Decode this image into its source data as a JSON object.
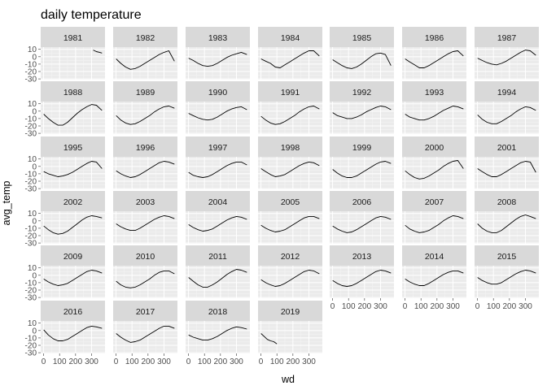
{
  "chart_data": {
    "type": "line",
    "title": "daily temperature",
    "xlabel": "wd",
    "ylabel": "avg_temp",
    "facet_panels": [
      {
        "year": "1981",
        "x": [
          310,
          330,
          350,
          365
        ],
        "y": [
          9,
          7,
          6,
          5
        ]
      },
      {
        "year": "1982",
        "x": [
          1,
          30,
          60,
          90,
          120,
          150,
          180,
          210,
          240,
          270,
          300,
          330,
          365
        ],
        "y": [
          -3,
          -9,
          -14,
          -17,
          -16,
          -13,
          -9,
          -5,
          -1,
          3,
          6,
          8,
          -6
        ]
      },
      {
        "year": "1983",
        "x": [
          1,
          30,
          60,
          90,
          120,
          150,
          180,
          210,
          240,
          270,
          300,
          330,
          365
        ],
        "y": [
          -2,
          -5,
          -9,
          -12,
          -13,
          -12,
          -9,
          -5,
          -1,
          2,
          4,
          6,
          3
        ]
      },
      {
        "year": "1984",
        "x": [
          1,
          30,
          60,
          90,
          120,
          150,
          180,
          210,
          240,
          270,
          300,
          330,
          365
        ],
        "y": [
          -3,
          -6,
          -9,
          -14,
          -15,
          -11,
          -7,
          -3,
          1,
          5,
          8,
          8,
          1
        ]
      },
      {
        "year": "1985",
        "x": [
          1,
          30,
          60,
          90,
          120,
          150,
          180,
          210,
          240,
          270,
          300,
          330,
          365
        ],
        "y": [
          -4,
          -8,
          -12,
          -15,
          -16,
          -14,
          -10,
          -5,
          0,
          4,
          5,
          3,
          -12
        ]
      },
      {
        "year": "1986",
        "x": [
          1,
          30,
          60,
          90,
          120,
          150,
          180,
          210,
          240,
          270,
          300,
          330,
          365
        ],
        "y": [
          -3,
          -7,
          -11,
          -15,
          -15,
          -12,
          -8,
          -4,
          0,
          4,
          7,
          8,
          1
        ]
      },
      {
        "year": "1987",
        "x": [
          1,
          30,
          60,
          90,
          120,
          150,
          180,
          210,
          240,
          270,
          300,
          330,
          365
        ],
        "y": [
          -2,
          -5,
          -8,
          -10,
          -11,
          -9,
          -6,
          -2,
          2,
          6,
          9,
          8,
          2
        ]
      },
      {
        "year": "1988",
        "x": [
          1,
          30,
          60,
          90,
          120,
          150,
          180,
          210,
          240,
          270,
          300,
          330,
          365
        ],
        "y": [
          -4,
          -10,
          -15,
          -19,
          -19,
          -15,
          -9,
          -3,
          2,
          6,
          9,
          8,
          1
        ]
      },
      {
        "year": "1989",
        "x": [
          1,
          30,
          60,
          90,
          120,
          150,
          180,
          210,
          240,
          270,
          300,
          330,
          365
        ],
        "y": [
          -6,
          -12,
          -16,
          -18,
          -17,
          -14,
          -10,
          -6,
          -1,
          3,
          6,
          7,
          4
        ]
      },
      {
        "year": "1990",
        "x": [
          1,
          30,
          60,
          90,
          120,
          150,
          180,
          210,
          240,
          270,
          300,
          330,
          365
        ],
        "y": [
          -3,
          -6,
          -9,
          -11,
          -12,
          -11,
          -8,
          -4,
          0,
          3,
          5,
          6,
          2
        ]
      },
      {
        "year": "1991",
        "x": [
          1,
          30,
          60,
          90,
          120,
          150,
          180,
          210,
          240,
          270,
          300,
          330,
          365
        ],
        "y": [
          -7,
          -12,
          -16,
          -18,
          -17,
          -14,
          -10,
          -6,
          -1,
          3,
          6,
          7,
          3
        ]
      },
      {
        "year": "1992",
        "x": [
          1,
          30,
          60,
          90,
          120,
          150,
          180,
          210,
          240,
          270,
          300,
          330,
          365
        ],
        "y": [
          -2,
          -6,
          -8,
          -10,
          -10,
          -8,
          -5,
          -1,
          2,
          5,
          7,
          6,
          2
        ]
      },
      {
        "year": "1993",
        "x": [
          1,
          30,
          60,
          90,
          120,
          150,
          180,
          210,
          240,
          270,
          300,
          330,
          365
        ],
        "y": [
          -4,
          -8,
          -10,
          -12,
          -12,
          -10,
          -7,
          -3,
          1,
          4,
          7,
          6,
          3
        ]
      },
      {
        "year": "1994",
        "x": [
          1,
          30,
          60,
          90,
          120,
          150,
          180,
          210,
          240,
          270,
          300,
          330,
          365
        ],
        "y": [
          -5,
          -11,
          -15,
          -17,
          -17,
          -14,
          -10,
          -6,
          -1,
          3,
          6,
          5,
          1
        ]
      },
      {
        "year": "1995",
        "x": [
          1,
          30,
          60,
          90,
          120,
          150,
          180,
          210,
          240,
          270,
          300,
          330,
          365
        ],
        "y": [
          -7,
          -10,
          -12,
          -14,
          -13,
          -11,
          -8,
          -4,
          0,
          4,
          7,
          6,
          -3
        ]
      },
      {
        "year": "1996",
        "x": [
          1,
          30,
          60,
          90,
          120,
          150,
          180,
          210,
          240,
          270,
          300,
          330,
          365
        ],
        "y": [
          -6,
          -10,
          -13,
          -15,
          -14,
          -11,
          -7,
          -3,
          1,
          5,
          7,
          6,
          3
        ]
      },
      {
        "year": "1997",
        "x": [
          1,
          30,
          60,
          90,
          120,
          150,
          180,
          210,
          240,
          270,
          300,
          330,
          365
        ],
        "y": [
          -8,
          -12,
          -14,
          -15,
          -14,
          -11,
          -7,
          -3,
          1,
          4,
          6,
          6,
          2
        ]
      },
      {
        "year": "1998",
        "x": [
          1,
          30,
          60,
          90,
          120,
          150,
          180,
          210,
          240,
          270,
          300,
          330,
          365
        ],
        "y": [
          -3,
          -7,
          -11,
          -14,
          -13,
          -11,
          -7,
          -3,
          1,
          4,
          6,
          5,
          1
        ]
      },
      {
        "year": "1999",
        "x": [
          1,
          30,
          60,
          90,
          120,
          150,
          180,
          210,
          240,
          270,
          300,
          330,
          365
        ],
        "y": [
          -4,
          -9,
          -13,
          -15,
          -15,
          -13,
          -9,
          -5,
          -1,
          3,
          6,
          7,
          4
        ]
      },
      {
        "year": "2000",
        "x": [
          1,
          30,
          60,
          90,
          120,
          150,
          180,
          210,
          240,
          270,
          300,
          330,
          365
        ],
        "y": [
          -6,
          -11,
          -15,
          -17,
          -16,
          -13,
          -9,
          -5,
          0,
          4,
          7,
          8,
          -3
        ]
      },
      {
        "year": "2001",
        "x": [
          1,
          30,
          60,
          90,
          120,
          150,
          180,
          210,
          240,
          270,
          300,
          330,
          365
        ],
        "y": [
          -3,
          -7,
          -11,
          -14,
          -14,
          -11,
          -7,
          -3,
          1,
          5,
          7,
          6,
          -8
        ]
      },
      {
        "year": "2002",
        "x": [
          1,
          30,
          60,
          90,
          120,
          150,
          180,
          210,
          240,
          270,
          300,
          330,
          365
        ],
        "y": [
          -7,
          -12,
          -16,
          -18,
          -17,
          -14,
          -9,
          -4,
          1,
          5,
          7,
          6,
          4
        ]
      },
      {
        "year": "2003",
        "x": [
          1,
          30,
          60,
          90,
          120,
          150,
          180,
          210,
          240,
          270,
          300,
          330,
          365
        ],
        "y": [
          -4,
          -8,
          -11,
          -13,
          -13,
          -10,
          -6,
          -2,
          2,
          5,
          7,
          6,
          3
        ]
      },
      {
        "year": "2004",
        "x": [
          1,
          30,
          60,
          90,
          120,
          150,
          180,
          210,
          240,
          270,
          300,
          330,
          365
        ],
        "y": [
          -5,
          -9,
          -12,
          -14,
          -13,
          -11,
          -7,
          -3,
          1,
          4,
          6,
          5,
          2
        ]
      },
      {
        "year": "2005",
        "x": [
          1,
          30,
          60,
          90,
          120,
          150,
          180,
          210,
          240,
          270,
          300,
          330,
          365
        ],
        "y": [
          -6,
          -10,
          -13,
          -15,
          -14,
          -12,
          -8,
          -4,
          0,
          4,
          6,
          6,
          3
        ]
      },
      {
        "year": "2006",
        "x": [
          1,
          30,
          60,
          90,
          120,
          150,
          180,
          210,
          240,
          270,
          300,
          330,
          365
        ],
        "y": [
          -7,
          -11,
          -14,
          -16,
          -15,
          -12,
          -8,
          -4,
          0,
          4,
          6,
          5,
          2
        ]
      },
      {
        "year": "2007",
        "x": [
          1,
          30,
          60,
          90,
          120,
          150,
          180,
          210,
          240,
          270,
          300,
          330,
          365
        ],
        "y": [
          -6,
          -11,
          -14,
          -16,
          -15,
          -13,
          -9,
          -5,
          0,
          4,
          7,
          6,
          3
        ]
      },
      {
        "year": "2008",
        "x": [
          1,
          30,
          60,
          90,
          120,
          150,
          180,
          210,
          240,
          270,
          300,
          330,
          365
        ],
        "y": [
          -4,
          -10,
          -14,
          -16,
          -16,
          -13,
          -8,
          -3,
          2,
          6,
          8,
          6,
          3
        ]
      },
      {
        "year": "2009",
        "x": [
          1,
          30,
          60,
          90,
          120,
          150,
          180,
          210,
          240,
          270,
          300,
          330,
          365
        ],
        "y": [
          -5,
          -9,
          -12,
          -14,
          -13,
          -11,
          -7,
          -3,
          1,
          5,
          7,
          6,
          3
        ]
      },
      {
        "year": "2010",
        "x": [
          1,
          30,
          60,
          90,
          120,
          150,
          180,
          210,
          240,
          270,
          300,
          330,
          365
        ],
        "y": [
          -8,
          -13,
          -16,
          -17,
          -16,
          -13,
          -9,
          -5,
          0,
          4,
          6,
          6,
          2
        ]
      },
      {
        "year": "2011",
        "x": [
          1,
          30,
          60,
          90,
          120,
          150,
          180,
          210,
          240,
          270,
          300,
          330,
          365
        ],
        "y": [
          -3,
          -8,
          -13,
          -16,
          -16,
          -13,
          -9,
          -4,
          1,
          5,
          8,
          7,
          4
        ]
      },
      {
        "year": "2012",
        "x": [
          1,
          30,
          60,
          90,
          120,
          150,
          180,
          210,
          240,
          270,
          300,
          330,
          365
        ],
        "y": [
          -6,
          -10,
          -13,
          -15,
          -14,
          -11,
          -7,
          -3,
          1,
          5,
          7,
          6,
          2
        ]
      },
      {
        "year": "2013",
        "x": [
          1,
          30,
          60,
          90,
          120,
          150,
          180,
          210,
          240,
          270,
          300,
          330,
          365
        ],
        "y": [
          -7,
          -11,
          -14,
          -15,
          -14,
          -11,
          -7,
          -3,
          1,
          5,
          7,
          6,
          3
        ]
      },
      {
        "year": "2014",
        "x": [
          1,
          30,
          60,
          90,
          120,
          150,
          180,
          210,
          240,
          270,
          300,
          330,
          365
        ],
        "y": [
          -5,
          -9,
          -12,
          -14,
          -14,
          -11,
          -7,
          -3,
          1,
          4,
          6,
          6,
          3
        ]
      },
      {
        "year": "2015",
        "x": [
          1,
          30,
          60,
          90,
          120,
          150,
          180,
          210,
          240,
          270,
          300,
          330,
          365
        ],
        "y": [
          -3,
          -7,
          -10,
          -12,
          -12,
          -10,
          -6,
          -2,
          2,
          5,
          7,
          6,
          3
        ]
      },
      {
        "year": "2016",
        "x": [
          1,
          30,
          60,
          90,
          120,
          150,
          180,
          210,
          240,
          270,
          300,
          330,
          365
        ],
        "y": [
          1,
          -6,
          -11,
          -14,
          -14,
          -12,
          -8,
          -4,
          0,
          4,
          6,
          5,
          3
        ]
      },
      {
        "year": "2017",
        "x": [
          1,
          30,
          60,
          90,
          120,
          150,
          180,
          210,
          240,
          270,
          300,
          330,
          365
        ],
        "y": [
          -4,
          -9,
          -13,
          -16,
          -15,
          -13,
          -9,
          -5,
          -1,
          3,
          6,
          6,
          3
        ]
      },
      {
        "year": "2018",
        "x": [
          1,
          30,
          60,
          90,
          120,
          150,
          180,
          210,
          240,
          270,
          300,
          330,
          365
        ],
        "y": [
          -6,
          -9,
          -11,
          -13,
          -13,
          -11,
          -8,
          -4,
          0,
          3,
          5,
          4,
          2
        ]
      },
      {
        "year": "2019",
        "x": [
          1,
          20,
          40,
          60,
          80,
          100
        ],
        "y": [
          -4,
          -8,
          -12,
          -14,
          -15,
          -18
        ]
      }
    ],
    "x_ticks": [
      0,
      100,
      200,
      300
    ],
    "x_tick_labels": [
      "0",
      "100",
      "200",
      "300"
    ],
    "y_ticks": [
      10,
      0,
      -10,
      -20,
      -30
    ],
    "y_tick_labels": [
      "10",
      "0",
      "-10",
      "-20",
      "-30"
    ],
    "xlim": [
      -18,
      384
    ],
    "ylim": [
      -31,
      13
    ],
    "grid": true,
    "legend": "none"
  },
  "colors": {
    "panel_background": "#ebebeb",
    "strip_background": "#d9d9d9",
    "grid_major": "#ffffff",
    "grid_minor": "#f5f5f5",
    "series_line": "#000000",
    "tick_text": "#4d4d4d"
  }
}
